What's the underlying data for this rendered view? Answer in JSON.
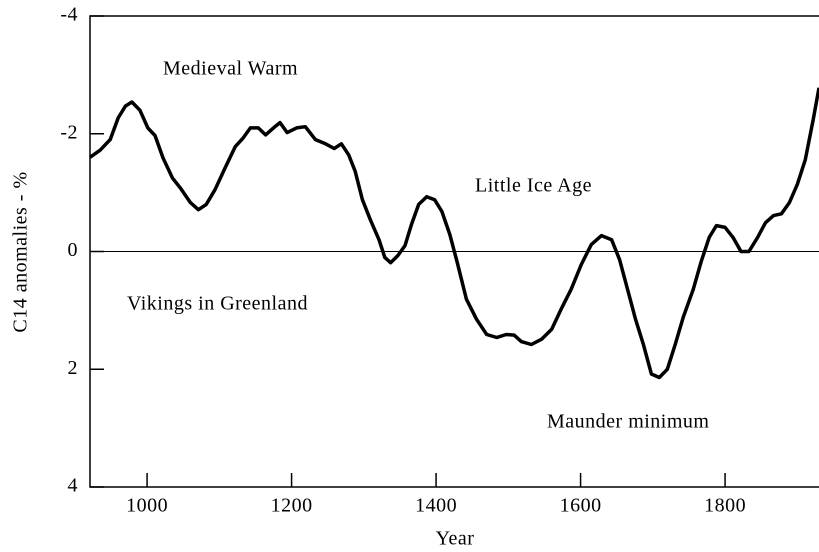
{
  "chart_data": {
    "type": "line",
    "xlabel": "Year",
    "ylabel": "C14 anomalies - %",
    "annotations": [
      "Medieval Warm",
      "Little Ice Age",
      "Vikings in Greenland",
      "Maunder minimum"
    ],
    "x": [
      921,
      935,
      949,
      960,
      970,
      979,
      990,
      1001,
      1011,
      1022,
      1035,
      1046,
      1060,
      1071,
      1082,
      1094,
      1108,
      1122,
      1133,
      1143,
      1154,
      1164,
      1175,
      1184,
      1194,
      1207,
      1219,
      1233,
      1247,
      1259,
      1269,
      1279,
      1288,
      1298,
      1309,
      1321,
      1329,
      1337,
      1347,
      1357,
      1366,
      1376,
      1387,
      1398,
      1408,
      1419,
      1429,
      1442,
      1456,
      1470,
      1484,
      1497,
      1508,
      1518,
      1532,
      1546,
      1560,
      1573,
      1587,
      1601,
      1615,
      1629,
      1643,
      1654,
      1665,
      1676,
      1687,
      1698,
      1709,
      1720,
      1731,
      1742,
      1756,
      1767,
      1778,
      1788,
      1800,
      1811,
      1822,
      1833,
      1845,
      1856,
      1867,
      1878,
      1889,
      1900,
      1911,
      1922,
      1930
    ],
    "series": [
      {
        "color": "#000000",
        "values": [
          -1.6,
          -1.72,
          -1.9,
          -2.27,
          -2.47,
          -2.54,
          -2.4,
          -2.1,
          -1.97,
          -1.59,
          -1.25,
          -1.08,
          -0.83,
          -0.71,
          -0.8,
          -1.05,
          -1.42,
          -1.78,
          -1.93,
          -2.1,
          -2.1,
          -1.98,
          -2.1,
          -2.19,
          -2.02,
          -2.1,
          -2.12,
          -1.9,
          -1.83,
          -1.75,
          -1.83,
          -1.64,
          -1.36,
          -0.88,
          -0.54,
          -0.2,
          0.1,
          0.19,
          0.07,
          -0.1,
          -0.46,
          -0.8,
          -0.93,
          -0.88,
          -0.68,
          -0.29,
          0.17,
          0.81,
          1.15,
          1.41,
          1.46,
          1.41,
          1.42,
          1.53,
          1.58,
          1.49,
          1.32,
          0.98,
          0.64,
          0.22,
          -0.12,
          -0.27,
          -0.2,
          0.14,
          0.64,
          1.15,
          1.58,
          2.08,
          2.14,
          2.0,
          1.58,
          1.12,
          0.64,
          0.17,
          -0.24,
          -0.44,
          -0.41,
          -0.24,
          0,
          0,
          -0.24,
          -0.49,
          -0.61,
          -0.64,
          -0.83,
          -1.14,
          -1.56,
          -2.24,
          -2.78
        ]
      }
    ],
    "xlim": [
      921,
      1930
    ],
    "xticks": [
      1000,
      1200,
      1400,
      1600,
      1800
    ],
    "ylim": [
      4,
      -4
    ],
    "yticks": [
      -4,
      -2,
      0,
      2,
      4
    ]
  }
}
